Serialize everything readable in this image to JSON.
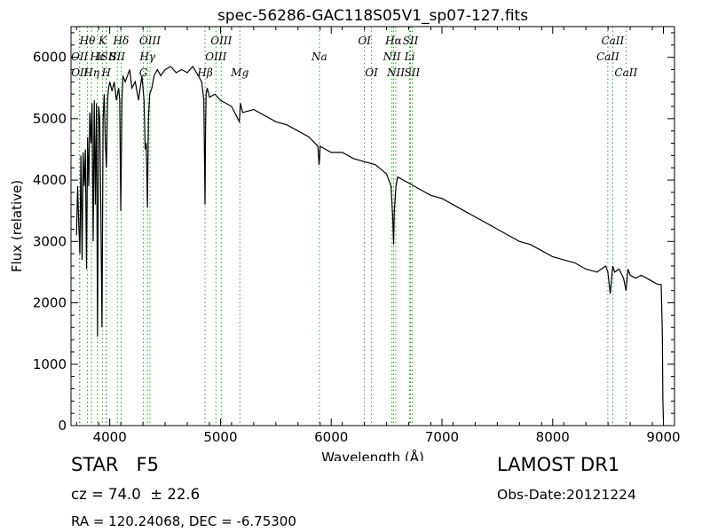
{
  "chart_data": {
    "type": "line",
    "title": "spec-56286-GAC118S05V1_sp07-127.fits",
    "xlabel": "Wavelength (Å)",
    "ylabel": "Flux (relative)",
    "xlim": [
      3650,
      9100
    ],
    "ylim": [
      0,
      6500
    ],
    "xticks": [
      4000,
      5000,
      6000,
      7000,
      8000,
      9000
    ],
    "xtick_labels": [
      "4000",
      "5000",
      "6000",
      "7000",
      "8000",
      "9000"
    ],
    "yticks": [
      0,
      1000,
      2000,
      3000,
      4000,
      5000,
      6000
    ],
    "ytick_labels": [
      "0",
      "1000",
      "2000",
      "3000",
      "4000",
      "5000",
      "6000"
    ],
    "grid": false,
    "line_color": "#000000",
    "marker_line_color": "#2ca02c",
    "series": [
      {
        "x": [
          3700,
          3710,
          3720,
          3730,
          3740,
          3750,
          3760,
          3770,
          3780,
          3790,
          3800,
          3810,
          3820,
          3830,
          3840,
          3850,
          3860,
          3870,
          3880,
          3890,
          3900,
          3910,
          3920,
          3930,
          3940,
          3950,
          3960,
          3970,
          3980,
          3990,
          4000,
          4020,
          4040,
          4060,
          4080,
          4090,
          4100,
          4110,
          4120,
          4140,
          4160,
          4180,
          4200,
          4230,
          4260,
          4290,
          4310,
          4320,
          4330,
          4340,
          4350,
          4360,
          4380,
          4400,
          4430,
          4460,
          4500,
          4550,
          4600,
          4650,
          4700,
          4750,
          4800,
          4830,
          4850,
          4860,
          4865,
          4870,
          4880,
          4900,
          4950,
          5000,
          5100,
          5170,
          5180,
          5200,
          5300,
          5400,
          5500,
          5600,
          5700,
          5800,
          5880,
          5890,
          5895,
          5900,
          5950,
          6000,
          6100,
          6200,
          6300,
          6400,
          6500,
          6540,
          6555,
          6563,
          6570,
          6585,
          6600,
          6700,
          6800,
          6900,
          7000,
          7100,
          7200,
          7300,
          7400,
          7500,
          7600,
          7700,
          7800,
          7900,
          8000,
          8100,
          8200,
          8300,
          8400,
          8480,
          8498,
          8520,
          8542,
          8560,
          8600,
          8640,
          8662,
          8680,
          8700,
          8750,
          8800,
          8850,
          8900,
          8950,
          8980,
          8990,
          8995,
          9000
        ],
        "y": [
          3100,
          3900,
          3300,
          2800,
          4400,
          2700,
          4450,
          3900,
          4500,
          2550,
          4700,
          3900,
          5100,
          4600,
          5250,
          3000,
          5300,
          3600,
          5250,
          1450,
          5200,
          5000,
          3400,
          1600,
          5000,
          5400,
          4600,
          4200,
          5300,
          5500,
          5600,
          5450,
          5600,
          5300,
          5500,
          5300,
          3500,
          5300,
          5700,
          5600,
          5700,
          5800,
          5500,
          5600,
          5300,
          5700,
          5300,
          4500,
          4600,
          3550,
          5000,
          5400,
          5500,
          5700,
          5800,
          5700,
          5800,
          5850,
          5750,
          5800,
          5750,
          5850,
          5700,
          5600,
          5300,
          3600,
          4800,
          5400,
          5500,
          5350,
          5400,
          5300,
          5200,
          4950,
          5250,
          5100,
          5150,
          5050,
          4950,
          4900,
          4800,
          4700,
          4550,
          4250,
          4350,
          4550,
          4500,
          4450,
          4450,
          4350,
          4300,
          4250,
          4100,
          3900,
          3400,
          2950,
          3500,
          3900,
          4050,
          3950,
          3850,
          3750,
          3700,
          3600,
          3500,
          3400,
          3300,
          3200,
          3100,
          3000,
          2950,
          2850,
          2750,
          2700,
          2650,
          2550,
          2500,
          2600,
          2500,
          2150,
          2600,
          2500,
          2550,
          2400,
          2200,
          2550,
          2450,
          2400,
          2450,
          2400,
          2350,
          2300,
          2300,
          1500,
          400,
          100
        ]
      }
    ],
    "line_markers": [
      {
        "wavelength": 3727,
        "label": "OII",
        "row": 1
      },
      {
        "wavelength": 3729,
        "label": "OII",
        "row": 2
      },
      {
        "wavelength": 3798,
        "label": "Hθ",
        "row": 0
      },
      {
        "wavelength": 3835,
        "label": "Hη",
        "row": 2
      },
      {
        "wavelength": 3889,
        "label": "Hε",
        "row": 1
      },
      {
        "wavelength": 3934,
        "label": "K",
        "row": 0
      },
      {
        "wavelength": 3968,
        "label": "H",
        "row": 2
      },
      {
        "wavelength": 3971,
        "label": "ISII",
        "row": 1
      },
      {
        "wavelength": 4102,
        "label": "Hδ",
        "row": 0
      },
      {
        "wavelength": 4069,
        "label": "SII",
        "row": 1
      },
      {
        "wavelength": 4304,
        "label": "G",
        "row": 2
      },
      {
        "wavelength": 4341,
        "label": "Hγ",
        "row": 1
      },
      {
        "wavelength": 4363,
        "label": "OIII",
        "row": 0
      },
      {
        "wavelength": 4861,
        "label": "Hβ",
        "row": 2
      },
      {
        "wavelength": 4959,
        "label": "OIII",
        "row": 1
      },
      {
        "wavelength": 5007,
        "label": "OIII",
        "row": 0
      },
      {
        "wavelength": 5175,
        "label": "Mg",
        "row": 2
      },
      {
        "wavelength": 5893,
        "label": "Na",
        "row": 1
      },
      {
        "wavelength": 6300,
        "label": "OI",
        "row": 0
      },
      {
        "wavelength": 6364,
        "label": "OI",
        "row": 2
      },
      {
        "wavelength": 6548,
        "label": "NII",
        "row": 1
      },
      {
        "wavelength": 6563,
        "label": "Hα",
        "row": 0
      },
      {
        "wavelength": 6583,
        "label": "NII",
        "row": 2
      },
      {
        "wavelength": 6708,
        "label": "Li",
        "row": 1
      },
      {
        "wavelength": 6716,
        "label": "SII",
        "row": 0
      },
      {
        "wavelength": 6731,
        "label": "SII",
        "row": 2
      },
      {
        "wavelength": 8498,
        "label": "CaII",
        "row": 1
      },
      {
        "wavelength": 8542,
        "label": "CaII",
        "row": 0
      },
      {
        "wavelength": 8662,
        "label": "CaII",
        "row": 2
      }
    ]
  },
  "info": {
    "class_label": "STAR   F5",
    "survey": "LAMOST DR1",
    "redshift": "cz = 74.0  ± 22.6",
    "obs_date": "Obs-Date:20121224",
    "coords": "RA = 120.24068, DEC = -6.75300"
  }
}
